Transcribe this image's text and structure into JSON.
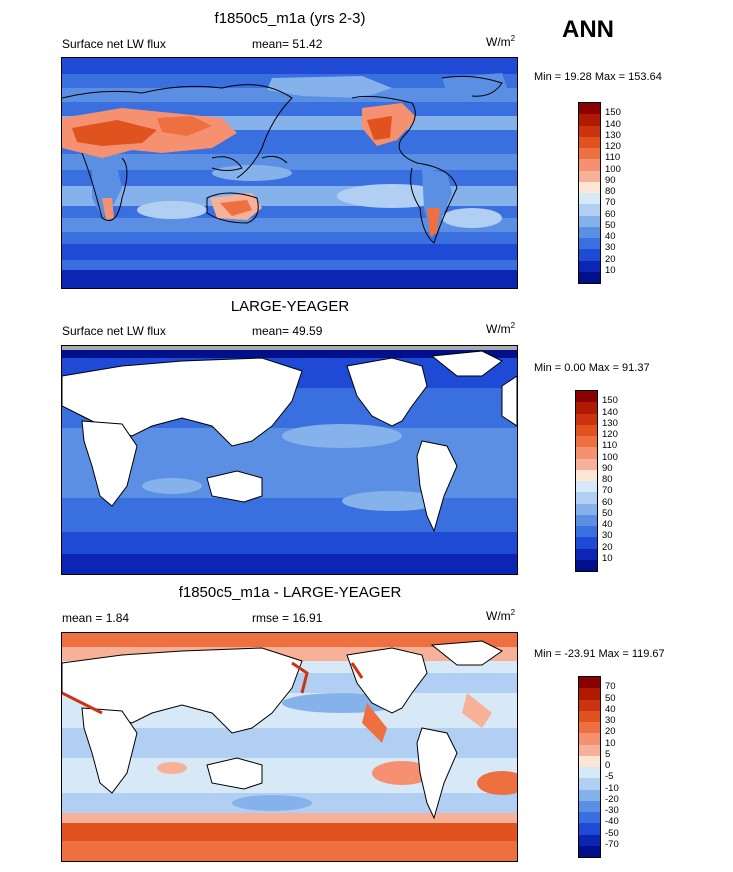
{
  "season": "ANN",
  "panels": [
    {
      "title": "f1850c5_m1a (yrs 2-3)",
      "left_label": "Surface net LW flux",
      "center_label": "mean=  51.42",
      "units": "W/m",
      "units_sup": "2",
      "minmax": "Min =  19.28 Max = 153.64",
      "colorbar_labels": [
        "150",
        "140",
        "130",
        "120",
        "110",
        "100",
        "90",
        "80",
        "70",
        "60",
        "50",
        "40",
        "30",
        "20",
        "10"
      ],
      "colorbar_colors": [
        "#8b0000",
        "#b01a00",
        "#cc3311",
        "#e0521e",
        "#ee7040",
        "#f59070",
        "#f7b198",
        "#fde6d3",
        "#d7e9f7",
        "#b0cff2",
        "#86b2ec",
        "#5b8fe3",
        "#3a6fe0",
        "#1e4ad6",
        "#0a26b2",
        "#00108a"
      ]
    },
    {
      "title": "LARGE-YEAGER",
      "left_label": "Surface net LW flux",
      "center_label": "mean=  49.59",
      "units": "W/m",
      "units_sup": "2",
      "minmax": "Min =   0.00 Max =  91.37",
      "colorbar_labels": [
        "150",
        "140",
        "130",
        "120",
        "110",
        "100",
        "90",
        "80",
        "70",
        "60",
        "50",
        "40",
        "30",
        "20",
        "10"
      ],
      "colorbar_colors": [
        "#8b0000",
        "#b01a00",
        "#cc3311",
        "#e0521e",
        "#ee7040",
        "#f59070",
        "#f7b198",
        "#fde6d3",
        "#d7e9f7",
        "#b0cff2",
        "#86b2ec",
        "#5b8fe3",
        "#3a6fe0",
        "#1e4ad6",
        "#0a26b2",
        "#00108a"
      ]
    },
    {
      "title": "f1850c5_m1a - LARGE-YEAGER",
      "left_label": "mean =   1.84",
      "center_label": "rmse =  16.91",
      "units": "W/m",
      "units_sup": "2",
      "minmax": "Min = -23.91 Max = 119.67",
      "colorbar_labels": [
        "70",
        "50",
        "40",
        "30",
        "20",
        "10",
        "5",
        "0",
        "-5",
        "-10",
        "-20",
        "-30",
        "-40",
        "-50",
        "-70"
      ],
      "colorbar_colors": [
        "#8b0000",
        "#b01a00",
        "#cc3311",
        "#e0521e",
        "#ee7040",
        "#f59070",
        "#f7b198",
        "#fde6d3",
        "#d7e9f7",
        "#b0cff2",
        "#86b2ec",
        "#5b8fe3",
        "#3a6fe0",
        "#1e4ad6",
        "#0a26b2",
        "#00108a"
      ]
    }
  ]
}
